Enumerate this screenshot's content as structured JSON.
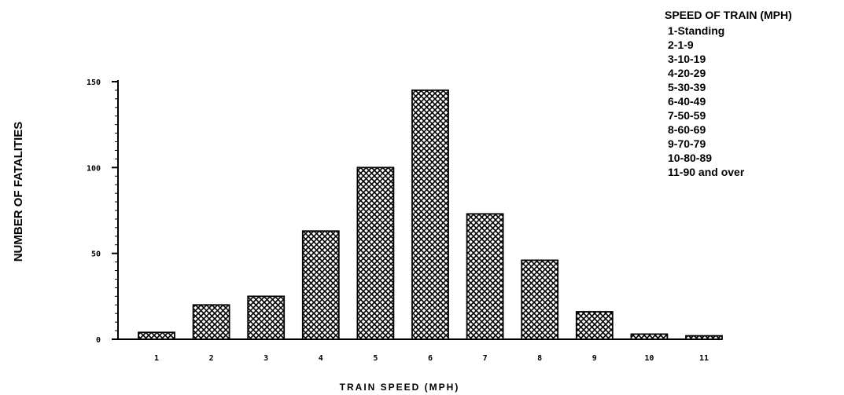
{
  "chart_data": {
    "type": "bar",
    "xlabel": "TRAIN SPEED (MPH)",
    "ylabel": "NUMBER OF FATALITIES",
    "categories": [
      "1",
      "2",
      "3",
      "4",
      "5",
      "6",
      "7",
      "8",
      "9",
      "10",
      "11"
    ],
    "values": [
      4,
      20,
      25,
      63,
      100,
      145,
      73,
      46,
      16,
      3,
      2
    ],
    "yticks": [
      0,
      50,
      100,
      150
    ],
    "ylim": [
      0,
      150
    ],
    "grid": false,
    "legend": {
      "title": "SPEED OF TRAIN (MPH)",
      "placement": "top-right",
      "items": [
        "1-Standing",
        "2-1-9",
        "3-10-19",
        "4-20-29",
        "5-30-39",
        "6-40-49",
        "7-50-59",
        "8-60-69",
        "9-70-79",
        "10-80-89",
        "11-90 and over"
      ]
    },
    "bar_pattern": "crosshatch",
    "colors": {
      "ink": "#000000",
      "fill": "#ffffff"
    }
  }
}
